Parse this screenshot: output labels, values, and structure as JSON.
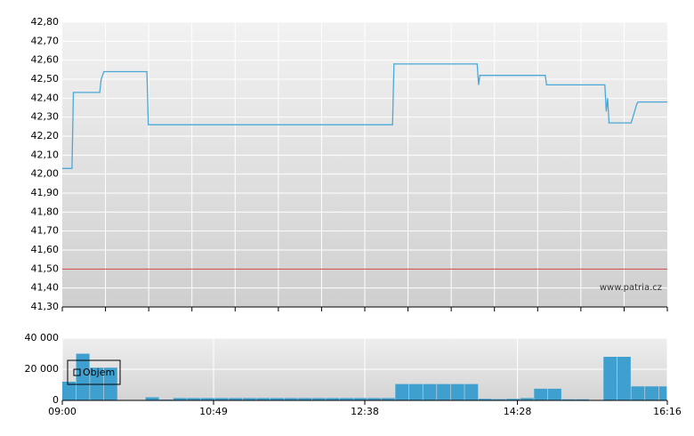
{
  "chart_data": [
    {
      "type": "line",
      "watermark": "www.patria.cz",
      "color": "#4aa8d8",
      "reference_value": 41.5,
      "reference_color": "#d04040",
      "xlim": [
        "09:00",
        "16:16"
      ],
      "ylim": [
        41.3,
        42.8
      ],
      "yticks": [
        {
          "value": 41.3,
          "label": "41,30"
        },
        {
          "value": 41.4,
          "label": "41,40"
        },
        {
          "value": 41.5,
          "label": "41,50"
        },
        {
          "value": 41.6,
          "label": "41,60"
        },
        {
          "value": 41.7,
          "label": "41,70"
        },
        {
          "value": 41.8,
          "label": "41,80"
        },
        {
          "value": 41.9,
          "label": "41,90"
        },
        {
          "value": 42.0,
          "label": "42,00"
        },
        {
          "value": 42.1,
          "label": "42,10"
        },
        {
          "value": 42.2,
          "label": "42,20"
        },
        {
          "value": 42.3,
          "label": "42,30"
        },
        {
          "value": 42.4,
          "label": "42,40"
        },
        {
          "value": 42.5,
          "label": "42,50"
        },
        {
          "value": 42.6,
          "label": "42,60"
        },
        {
          "value": 42.7,
          "label": "42,70"
        },
        {
          "value": 42.8,
          "label": "42,80"
        }
      ],
      "x": [
        "09:00",
        "09:07",
        "09:08",
        "09:27",
        "09:28",
        "09:30",
        "10:01",
        "10:02",
        "12:58",
        "12:59",
        "13:59",
        "14:00",
        "14:01",
        "14:48",
        "14:49",
        "15:31",
        "15:32",
        "15:33",
        "15:34",
        "15:50",
        "15:52",
        "15:54",
        "15:55",
        "16:16"
      ],
      "values": [
        42.03,
        42.03,
        42.43,
        42.43,
        42.5,
        42.54,
        42.54,
        42.26,
        42.26,
        42.58,
        42.58,
        42.47,
        42.52,
        42.52,
        42.47,
        42.47,
        42.33,
        42.4,
        42.27,
        42.27,
        42.32,
        42.37,
        42.38,
        42.38
      ]
    },
    {
      "type": "bar",
      "xlim": [
        "09:00",
        "16:16"
      ],
      "xticks": [
        "09:00",
        "10:49",
        "12:38",
        "14:28",
        "16:16"
      ],
      "ylim": [
        0,
        40000
      ],
      "yticks": [
        0,
        {
          "value": 20000,
          "label": "20 000"
        },
        {
          "value": 40000,
          "label": "40 000"
        }
      ],
      "series": [
        {
          "name": "Objem",
          "color": "#3fa0d0",
          "x": [
            "09:00",
            "09:10",
            "09:20",
            "09:30",
            "09:40",
            "09:50",
            "10:00",
            "10:10",
            "10:20",
            "10:30",
            "10:40",
            "10:50",
            "11:00",
            "11:10",
            "11:20",
            "11:30",
            "11:40",
            "11:50",
            "12:00",
            "12:10",
            "12:20",
            "12:30",
            "12:40",
            "12:50",
            "13:00",
            "13:10",
            "13:20",
            "13:30",
            "13:40",
            "13:50",
            "14:00",
            "14:10",
            "14:20",
            "14:30",
            "14:40",
            "14:50",
            "15:00",
            "15:10",
            "15:20",
            "15:30",
            "15:40",
            "15:50",
            "16:00",
            "16:10"
          ],
          "values": [
            12000,
            30000,
            21000,
            21000,
            0,
            0,
            2000,
            500,
            1500,
            1500,
            1500,
            1500,
            1500,
            1500,
            1500,
            1500,
            1500,
            1500,
            1500,
            1500,
            1500,
            1500,
            1500,
            1500,
            10500,
            10500,
            10500,
            10500,
            10500,
            10500,
            1000,
            800,
            1000,
            1500,
            7500,
            7500,
            700,
            700,
            0,
            28000,
            28000,
            9000,
            9000,
            9000
          ]
        }
      ]
    }
  ]
}
